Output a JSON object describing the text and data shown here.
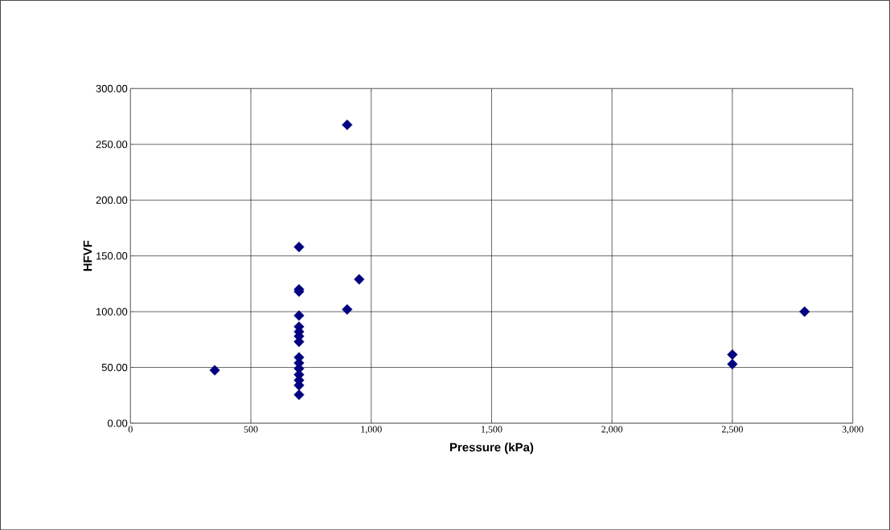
{
  "chart_data": {
    "type": "scatter",
    "xlabel": "Pressure (kPa)",
    "ylabel": "HFVF",
    "x": [
      350,
      700,
      700,
      700,
      700,
      700,
      700,
      700,
      700,
      700,
      700,
      700,
      700,
      700,
      700,
      700,
      900,
      900,
      950,
      2500,
      2500,
      2800
    ],
    "series": [
      {
        "color": "#000080",
        "values": [
          47.5,
          158,
          120,
          118,
          96.5,
          86.5,
          82,
          78,
          73,
          59,
          54,
          49,
          43.5,
          38.5,
          34,
          25.5,
          267.5,
          102,
          129,
          61.5,
          53,
          100
        ]
      }
    ],
    "xlim": [
      0,
      3000
    ],
    "ylim": [
      0,
      300
    ],
    "xticks": [
      {
        "value": 0,
        "label": "0"
      },
      {
        "value": 500,
        "label": "500"
      },
      {
        "value": 1000,
        "label": "1,000"
      },
      {
        "value": 1500,
        "label": "1,500"
      },
      {
        "value": 2000,
        "label": "2,000"
      },
      {
        "value": 2500,
        "label": "2,500"
      },
      {
        "value": 3000,
        "label": "3,000"
      }
    ],
    "yticks": [
      {
        "value": 0,
        "label": "0.00"
      },
      {
        "value": 50,
        "label": "50.00"
      },
      {
        "value": 100,
        "label": "100.00"
      },
      {
        "value": 150,
        "label": "150.00"
      },
      {
        "value": 200,
        "label": "200.00"
      },
      {
        "value": 250,
        "label": "250.00"
      },
      {
        "value": 300,
        "label": "300.00"
      }
    ],
    "grid": true,
    "marker": "diamond"
  }
}
